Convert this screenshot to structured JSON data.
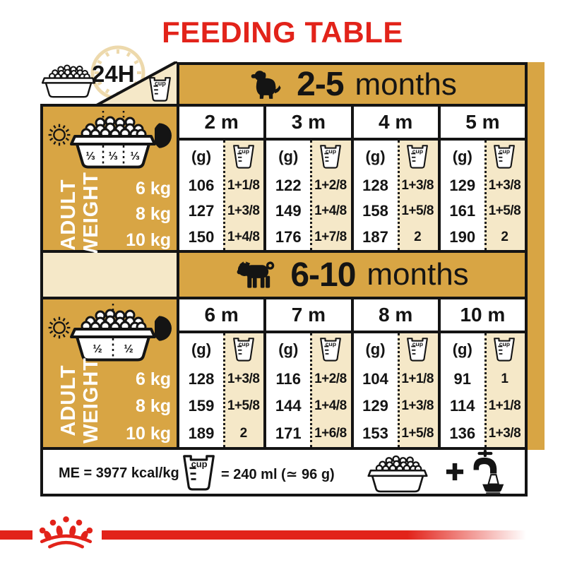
{
  "title": "FEEDING TABLE",
  "labels": {
    "cup": "cup",
    "always": "24H",
    "grams": "(g)"
  },
  "sections": [
    {
      "range": "2-5",
      "unit": "months",
      "side_label": [
        "ADULT",
        "WEIGHT"
      ],
      "weights": [
        "6 kg",
        "8 kg",
        "10 kg"
      ],
      "portions": [
        "⅓",
        "⅓",
        "⅓"
      ],
      "columns": [
        {
          "month": "2 m",
          "g": [
            "106",
            "127",
            "150"
          ],
          "cups": [
            "1+1/8",
            "1+3/8",
            "1+4/8"
          ]
        },
        {
          "month": "3 m",
          "g": [
            "122",
            "149",
            "176"
          ],
          "cups": [
            "1+2/8",
            "1+4/8",
            "1+7/8"
          ]
        },
        {
          "month": "4 m",
          "g": [
            "128",
            "158",
            "187"
          ],
          "cups": [
            "1+3/8",
            "1+5/8",
            "2"
          ]
        },
        {
          "month": "5 m",
          "g": [
            "129",
            "161",
            "190"
          ],
          "cups": [
            "1+3/8",
            "1+5/8",
            "2"
          ]
        }
      ]
    },
    {
      "range": "6-10",
      "unit": "months",
      "side_label": [
        "ADULT",
        "WEIGHT"
      ],
      "weights": [
        "6 kg",
        "8 kg",
        "10 kg"
      ],
      "portions": [
        "½",
        "½"
      ],
      "columns": [
        {
          "month": "6 m",
          "g": [
            "128",
            "159",
            "189"
          ],
          "cups": [
            "1+3/8",
            "1+5/8",
            "2"
          ]
        },
        {
          "month": "7 m",
          "g": [
            "116",
            "144",
            "171"
          ],
          "cups": [
            "1+2/8",
            "1+4/8",
            "1+6/8"
          ]
        },
        {
          "month": "8 m",
          "g": [
            "104",
            "129",
            "153"
          ],
          "cups": [
            "1+1/8",
            "1+3/8",
            "1+5/8"
          ]
        },
        {
          "month": "10 m",
          "g": [
            "91",
            "114",
            "136"
          ],
          "cups": [
            "1",
            "1+1/8",
            "1+3/8"
          ]
        }
      ]
    }
  ],
  "footer": {
    "me": "ME = 3977 kcal/kg",
    "cup_equiv": "= 240 ml (≃ 96 g)"
  },
  "colors": {
    "gold": "#D8A544",
    "cream": "#F5E8C8",
    "red": "#E2231A",
    "ink": "#141414",
    "clock_tan": "#EDD9AC"
  }
}
